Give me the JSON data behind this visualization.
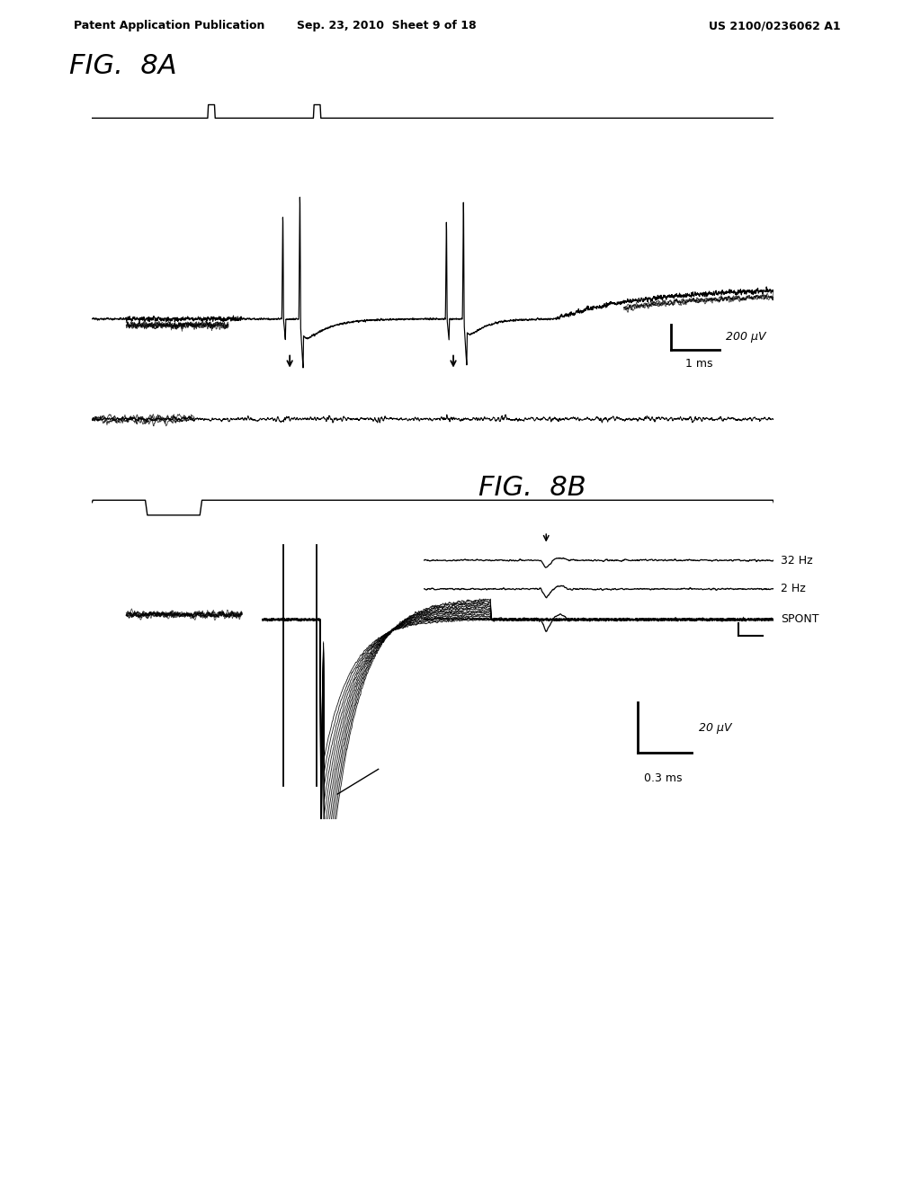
{
  "bg_color": "#ffffff",
  "header_line1": "Patent Application Publication",
  "header_line2": "Sep. 23, 2010  Sheet 9 of 18",
  "header_line3": "US 2100/0236062 A1",
  "fig8a_label": "FIG.  8A",
  "fig8b_label": "FIG.  8B",
  "scale_bar_8a_text1": "200 μV",
  "scale_bar_8a_text2": "1 ms",
  "scale_bar_8b_text1": "20 μV",
  "scale_bar_8b_text2": "0.3 ms",
  "inset_labels": [
    "32 Hz",
    "2 Hz",
    "SPONT"
  ]
}
